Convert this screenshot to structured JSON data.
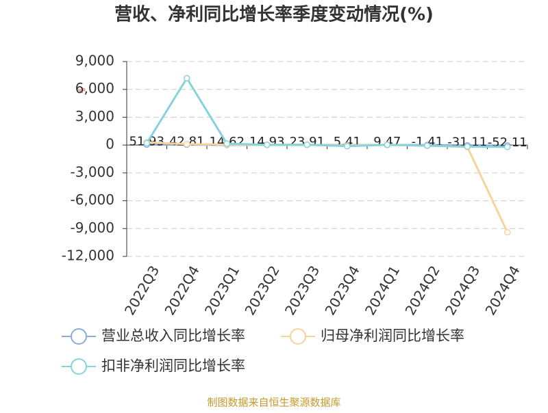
{
  "chart_data": {
    "type": "line",
    "title": "营收、净利同比增长率季度变动情况(%)",
    "y_label": "%",
    "categories": [
      "2022Q3",
      "2022Q4",
      "2023Q1",
      "2023Q2",
      "2023Q3",
      "2023Q4",
      "2024Q1",
      "2024Q2",
      "2024Q3",
      "2024Q4"
    ],
    "series": [
      {
        "name": "营业总收入同比增长率",
        "color": "#8eaadb",
        "values": [
          51.93,
          42.81,
          14.62,
          14.93,
          23.91,
          5.41,
          9.47,
          -1.41,
          -31.11,
          -52.11
        ],
        "show_labels": true
      },
      {
        "name": "归母净利润同比增长率",
        "color": "#f7d49a",
        "values": [
          300,
          100,
          50,
          20,
          30,
          -50,
          20,
          -80,
          -200,
          -9400
        ]
      },
      {
        "name": "扣非净利润同比增长率",
        "color": "#86d3d9",
        "values": [
          200,
          7200,
          150,
          30,
          40,
          -120,
          30,
          -60,
          -160,
          -200
        ]
      }
    ],
    "ylim": [
      -12000,
      9000
    ],
    "yticks": [
      {
        "value": -12000,
        "label": "-12,000"
      },
      {
        "value": -9000,
        "label": "-9,000"
      },
      {
        "value": -6000,
        "label": "-6,000"
      },
      {
        "value": -3000,
        "label": "-3,000"
      },
      0,
      {
        "value": 3000,
        "label": "3,000"
      },
      {
        "value": 6000,
        "label": "6,000"
      },
      {
        "value": 9000,
        "label": "9,000"
      }
    ],
    "grid": true,
    "footer": "制图数据来自恒生聚源数据库"
  }
}
